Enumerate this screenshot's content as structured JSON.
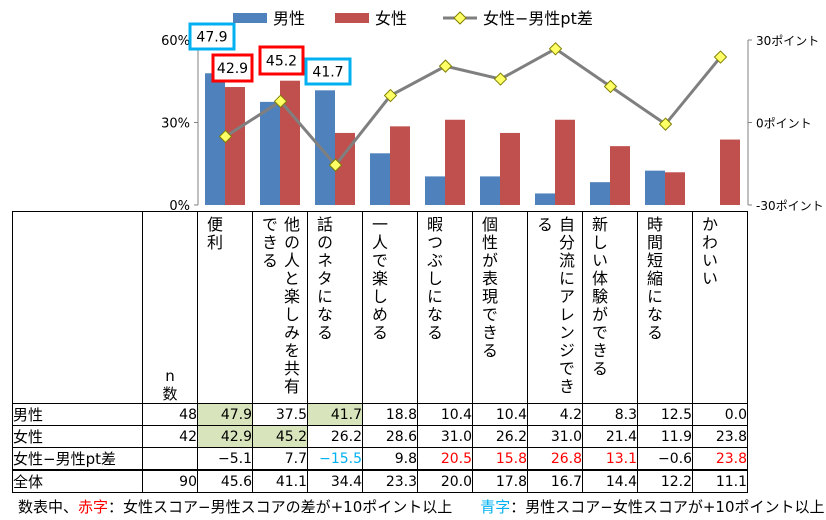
{
  "chart_data": {
    "type": "bar",
    "categories": [
      "便利",
      "他の人と楽しみを共有できる",
      "話のネタになる",
      "一人で楽しめる",
      "暇つぶしになる",
      "個性が表現できる",
      "自分流にアレンジできる",
      "新しい体験ができる",
      "時間短縮になる",
      "かわいい"
    ],
    "series": [
      {
        "name": "男性",
        "type": "bar",
        "color": "#4f81bd",
        "axis": "left",
        "values": [
          47.9,
          37.5,
          41.7,
          18.8,
          10.4,
          10.4,
          4.2,
          8.3,
          12.5,
          0.0
        ]
      },
      {
        "name": "女性",
        "type": "bar",
        "color": "#c0504d",
        "axis": "left",
        "values": [
          42.9,
          45.2,
          26.2,
          28.6,
          31.0,
          26.2,
          31.0,
          21.4,
          11.9,
          23.8
        ]
      },
      {
        "name": "女性−男性pt差",
        "type": "line",
        "color": "#7f7f7f",
        "marker_color": "#ffff66",
        "axis": "right",
        "values": [
          -5.1,
          7.7,
          -15.5,
          9.8,
          20.5,
          15.8,
          26.8,
          13.1,
          -0.6,
          23.8
        ]
      }
    ],
    "y_left": {
      "min": 0,
      "max": 60,
      "ticks": [
        "0%",
        "30%",
        "60%"
      ]
    },
    "y_right": {
      "min": -30,
      "max": 30,
      "ticks": [
        "-30ポイント",
        "0ポイント",
        "30ポイント"
      ]
    },
    "legend_position": "top",
    "callouts": [
      {
        "text": "47.9",
        "color": "#00b0f0"
      },
      {
        "text": "42.9",
        "color": "#ff0000"
      },
      {
        "text": "45.2",
        "color": "#ff0000"
      },
      {
        "text": "41.7",
        "color": "#00b0f0"
      }
    ]
  },
  "table": {
    "n_header": "n\n数",
    "columns": [
      "便利",
      "他の人と楽しみを共有できる",
      "話のネタになる",
      "一人で楽しめる",
      "暇つぶしになる",
      "個性が表現できる",
      "自分流にアレンジできる",
      "新しい体験ができる",
      "時間短縮になる",
      "かわいい"
    ],
    "rows": [
      {
        "label": "男性",
        "n": "48",
        "values": [
          "47.9",
          "37.5",
          "41.7",
          "18.8",
          "10.4",
          "10.4",
          "4.2",
          "8.3",
          "12.5",
          "0.0"
        ]
      },
      {
        "label": "女性",
        "n": "42",
        "values": [
          "42.9",
          "45.2",
          "26.2",
          "28.6",
          "31.0",
          "26.2",
          "31.0",
          "21.4",
          "11.9",
          "23.8"
        ]
      },
      {
        "label": "女性−男性pt差",
        "n": "",
        "values": [
          "−5.1",
          "7.7",
          "−15.5",
          "9.8",
          "20.5",
          "15.8",
          "26.8",
          "13.1",
          "−0.6",
          "23.8"
        ]
      },
      {
        "label": "全体",
        "n": "90",
        "values": [
          "45.6",
          "41.1",
          "34.4",
          "23.3",
          "20.0",
          "17.8",
          "16.7",
          "14.4",
          "12.2",
          "11.1"
        ]
      }
    ],
    "highlight_color": "#d8e4bc",
    "red_color": "#ff0000",
    "blue_color": "#00b0f0"
  },
  "footnote": {
    "prefix": "数表中、",
    "red_label": "赤字",
    "red_text": "：女性スコア−男性スコアの差が+10ポイント以上",
    "blue_label": "青字",
    "blue_text": "：男性スコア−女性スコアが+10ポイント以上"
  }
}
